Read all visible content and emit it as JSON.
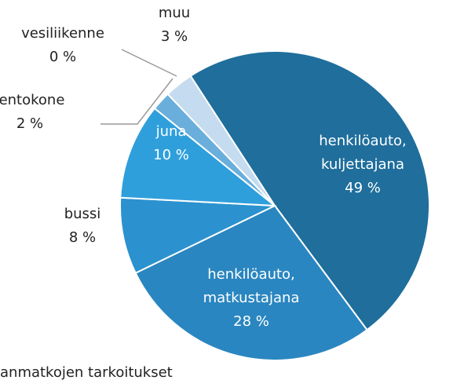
{
  "chart_data": {
    "type": "pie",
    "categories": [
      "henkilöauto, kuljettajana",
      "henkilöauto, matkustajana",
      "bussi",
      "juna",
      "lentokone",
      "vesiliikenne",
      "muu"
    ],
    "values": [
      49,
      28,
      8,
      10,
      2,
      0,
      3
    ],
    "value_labels": [
      "49 %",
      "28 %",
      "8 %",
      "10 %",
      "2 %",
      "0 %",
      "3 %"
    ],
    "colors": [
      "#1f6e9c",
      "#2a86c0",
      "#2b92cf",
      "#2f9fdc",
      "#6aaedc",
      "#b3d2ee",
      "#c5dbef"
    ],
    "caption": "anmatkojen tarkoitukset"
  }
}
